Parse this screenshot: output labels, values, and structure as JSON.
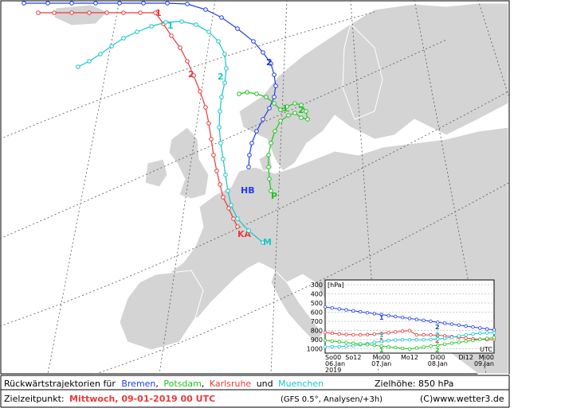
{
  "map": {
    "trajectory_labels": {
      "bremen_start": "HB",
      "potsdam_start": "P",
      "karlsruhe_start": "KA",
      "muenchen_start": "M",
      "day1": "1",
      "day2": "2"
    }
  },
  "inset": {
    "unit_label": "[hPa]",
    "y_ticks": [
      "300",
      "400",
      "500",
      "600",
      "700",
      "800",
      "900",
      "1000"
    ],
    "x_tick_top": [
      "So00",
      "So12",
      "Mo00",
      "Mo12",
      "Di00",
      "Di12",
      "Mi00"
    ],
    "x_tick_bottom": [
      "06.Jan",
      "",
      "07.Jan",
      "",
      "08.Jan",
      "",
      "09.Jan"
    ],
    "year": "2019",
    "utc": "UTC"
  },
  "footer": {
    "line1_prefix": "Rückwärtstrajektorien für",
    "city1": "Bremen",
    "sep1": ",",
    "city2": "Potsdam",
    "sep2": ",",
    "city3": "Karlsruhe",
    "und": "und",
    "city4": "Muenchen",
    "zielhoehe": "Zielhöhe: 850 hPa",
    "line2_prefix": "Zielzeitpunkt:",
    "target_time": "Mittwoch, 09-01-2019   00 UTC",
    "model": "(GFS 0.5°, Analysen/+3h)",
    "copyright": "(C)www.wetter3.de"
  },
  "colors": {
    "bremen": "#1f3fe0",
    "potsdam": "#1fc41f",
    "karlsruhe": "#e83a3a",
    "muenchen": "#17c6c6",
    "land": "#d4d4d4",
    "sea": "#ffffff"
  }
}
